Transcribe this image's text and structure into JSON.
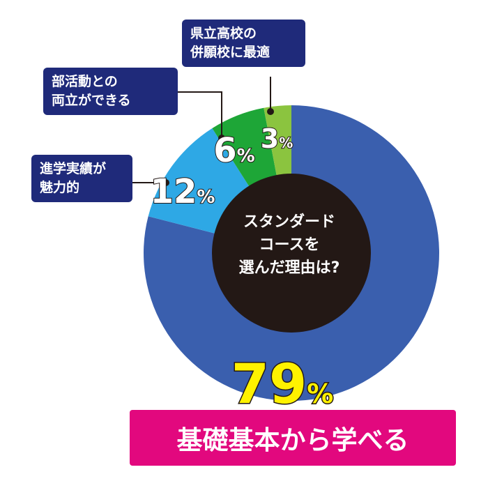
{
  "chart_data": {
    "type": "pie",
    "title": "スタンダードコースを選んだ理由は?",
    "categories": [
      "基礎基本から学べる",
      "進学実績が魅力的",
      "部活動との両立ができる",
      "県立高校の併願校に最適"
    ],
    "values": [
      79,
      12,
      6,
      3
    ],
    "value_labels": [
      "79",
      "12",
      "6",
      "3"
    ],
    "unit": "%",
    "colors": [
      "#3a5fae",
      "#2ea8e5",
      "#1ea637",
      "#8bc43f"
    ]
  },
  "center_label": "スタンダード\nコースを\n選んだ理由は?",
  "callouts": {
    "a": "県立高校の\n併願校に最適",
    "b": "部活動との\n両立ができる",
    "c": "進学実績が\n魅力的"
  },
  "headline": "基礎基本から学べる"
}
